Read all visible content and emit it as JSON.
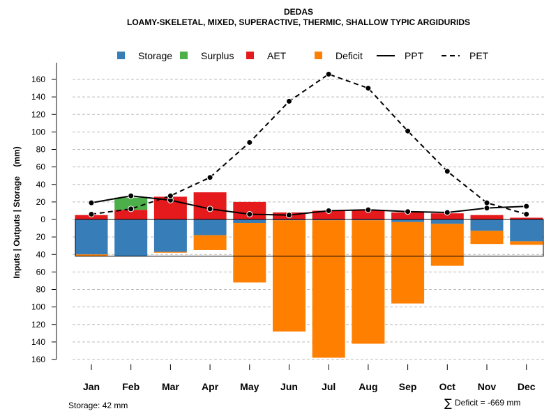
{
  "chart_data": {
    "type": "bar",
    "title": "DEDAS",
    "subtitle": "LOAMY-SKELETAL, MIXED, SUPERACTIVE, THERMIC, SHALLOW TYPIC ARGIDURIDS",
    "xlabel": "",
    "ylabel": "Inputs | Outputs | Storage    (mm)",
    "categories": [
      "Jan",
      "Feb",
      "Mar",
      "Apr",
      "May",
      "Jun",
      "Jul",
      "Aug",
      "Sep",
      "Oct",
      "Nov",
      "Dec"
    ],
    "ylim": [
      -160,
      170
    ],
    "yticks": [
      160,
      140,
      120,
      100,
      80,
      60,
      40,
      20,
      0,
      20,
      40,
      60,
      80,
      100,
      120,
      140,
      160
    ],
    "ytick_values": [
      160,
      140,
      120,
      100,
      80,
      60,
      40,
      20,
      0,
      -20,
      -40,
      -60,
      -80,
      -100,
      -120,
      -140,
      -160
    ],
    "grid": true,
    "legend_position": "top",
    "legend": [
      {
        "name": "Storage",
        "kind": "box",
        "color": "#377EB8"
      },
      {
        "name": "Surplus",
        "kind": "box",
        "color": "#4DAF4A"
      },
      {
        "name": "AET",
        "kind": "box",
        "color": "#E41A1C"
      },
      {
        "name": "Deficit",
        "kind": "box",
        "color": "#FF7F00"
      },
      {
        "name": "PPT",
        "kind": "solid-line",
        "color": "#000000"
      },
      {
        "name": "PET",
        "kind": "dashed-line",
        "color": "#000000"
      }
    ],
    "series": [
      {
        "name": "AET",
        "values": [
          5,
          11,
          26,
          31,
          20,
          8,
          10,
          11,
          8,
          7,
          5,
          2
        ],
        "color": "#E41A1C"
      },
      {
        "name": "Surplus",
        "values": [
          0,
          14,
          0,
          0,
          0,
          0,
          0,
          0,
          0,
          0,
          0,
          0
        ],
        "color": "#4DAF4A"
      },
      {
        "name": "Storage",
        "values": [
          40,
          42,
          37,
          18,
          4,
          1,
          1,
          1,
          3,
          5,
          13,
          25
        ],
        "color": "#377EB8"
      },
      {
        "name": "Deficit",
        "values": [
          2,
          0,
          1,
          17,
          68,
          127,
          157,
          141,
          93,
          48,
          15,
          4
        ],
        "color": "#FF7F00"
      },
      {
        "name": "PPT",
        "values": [
          19,
          27,
          22,
          12,
          6,
          5,
          10,
          11,
          9,
          8,
          13,
          15
        ],
        "color": "#000000"
      },
      {
        "name": "PET",
        "values": [
          6,
          12,
          27,
          48,
          88,
          135,
          166,
          150,
          101,
          55,
          19,
          6
        ],
        "color": "#000000"
      }
    ],
    "storage_capacity": 42
  },
  "footer": {
    "storage_note": "Storage: 42 mm",
    "deficit_symbol": "∑",
    "deficit_note": "Deficit = -669 mm"
  }
}
